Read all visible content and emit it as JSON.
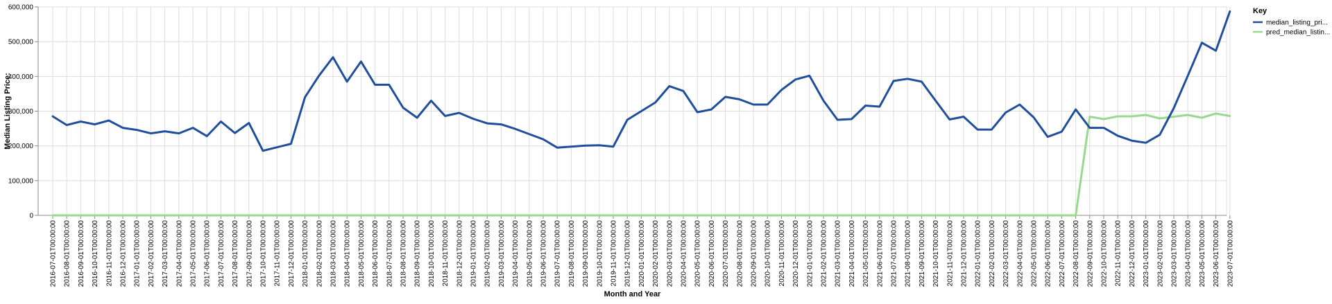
{
  "chart_data": {
    "type": "line",
    "xlabel": "Month and Year",
    "ylabel": "Median Listing Price:",
    "ylim": [
      0,
      600000
    ],
    "y_ticks": [
      "0",
      "100,000",
      "200,000",
      "300,000",
      "400,000",
      "500,000",
      "600,000"
    ],
    "grid": true,
    "legend": {
      "title": "Key",
      "placement": "top-right"
    },
    "x": [
      "2016-07-01T00:00:00",
      "2016-08-01T00:00:00",
      "2016-09-01T00:00:00",
      "2016-10-01T00:00:00",
      "2016-11-01T00:00:00",
      "2016-12-01T00:00:00",
      "2017-01-01T00:00:00",
      "2017-02-01T00:00:00",
      "2017-03-01T00:00:00",
      "2017-04-01T00:00:00",
      "2017-05-01T00:00:00",
      "2017-06-01T00:00:00",
      "2017-07-01T00:00:00",
      "2017-08-01T00:00:00",
      "2017-09-01T00:00:00",
      "2017-10-01T00:00:00",
      "2017-11-01T00:00:00",
      "2017-12-01T00:00:00",
      "2018-01-01T00:00:00",
      "2018-02-01T00:00:00",
      "2018-03-01T00:00:00",
      "2018-04-01T00:00:00",
      "2018-05-01T00:00:00",
      "2018-06-01T00:00:00",
      "2018-07-01T00:00:00",
      "2018-08-01T00:00:00",
      "2018-09-01T00:00:00",
      "2018-10-01T00:00:00",
      "2018-11-01T00:00:00",
      "2018-12-01T00:00:00",
      "2019-01-01T00:00:00",
      "2019-02-01T00:00:00",
      "2019-03-01T00:00:00",
      "2019-04-01T00:00:00",
      "2019-05-01T00:00:00",
      "2019-06-01T00:00:00",
      "2019-07-01T00:00:00",
      "2019-08-01T00:00:00",
      "2019-09-01T00:00:00",
      "2019-10-01T00:00:00",
      "2019-11-01T00:00:00",
      "2019-12-01T00:00:00",
      "2020-01-01T00:00:00",
      "2020-02-01T00:00:00",
      "2020-03-01T00:00:00",
      "2020-04-01T00:00:00",
      "2020-05-01T00:00:00",
      "2020-06-01T00:00:00",
      "2020-07-01T00:00:00",
      "2020-08-01T00:00:00",
      "2020-09-01T00:00:00",
      "2020-10-01T00:00:00",
      "2020-11-01T00:00:00",
      "2020-12-01T00:00:00",
      "2021-01-01T00:00:00",
      "2021-02-01T00:00:00",
      "2021-03-01T00:00:00",
      "2021-04-01T00:00:00",
      "2021-05-01T00:00:00",
      "2021-06-01T00:00:00",
      "2021-07-01T00:00:00",
      "2021-08-01T00:00:00",
      "2021-09-01T00:00:00",
      "2021-10-01T00:00:00",
      "2021-11-01T00:00:00",
      "2021-12-01T00:00:00",
      "2022-01-01T00:00:00",
      "2022-02-01T00:00:00",
      "2022-03-01T00:00:00",
      "2022-04-01T00:00:00",
      "2022-05-01T00:00:00",
      "2022-06-01T00:00:00",
      "2022-07-01T00:00:00",
      "2022-08-01T00:00:00",
      "2022-09-01T00:00:00",
      "2022-10-01T00:00:00",
      "2022-11-01T00:00:00",
      "2022-12-01T00:00:00",
      "2023-01-01T00:00:00",
      "2023-02-01T00:00:00",
      "2023-03-01T00:00:00",
      "2023-04-01T00:00:00",
      "2023-05-01T00:00:00",
      "2023-06-01T00:00:00",
      "2023-07-01T00:00:00"
    ],
    "series": [
      {
        "name": "median_listing_pri...",
        "color": "#1f4e9c",
        "values": [
          285000,
          260000,
          270000,
          262000,
          273000,
          252000,
          246000,
          236000,
          242000,
          236000,
          252000,
          228000,
          270000,
          237000,
          266000,
          186000,
          196000,
          206000,
          340000,
          402000,
          455000,
          385000,
          443000,
          376000,
          376000,
          310000,
          281000,
          330000,
          286000,
          295000,
          278000,
          265000,
          262000,
          249000,
          234000,
          219000,
          195000,
          198000,
          201000,
          202000,
          198000,
          275000,
          300000,
          325000,
          372000,
          358000,
          297000,
          305000,
          341000,
          334000,
          319000,
          319000,
          361000,
          391000,
          402000,
          330000,
          275000,
          277000,
          316000,
          313000,
          387000,
          393000,
          385000,
          330000,
          276000,
          284000,
          247000,
          247000,
          296000,
          319000,
          282000,
          226000,
          241000,
          305000,
          252000,
          252000,
          229000,
          215000,
          209000,
          232000,
          309000,
          402000,
          497000,
          474000,
          587000
        ]
      },
      {
        "name": "pred_median_listin...",
        "color": "#98d98e",
        "values": [
          0,
          0,
          0,
          0,
          0,
          0,
          0,
          0,
          0,
          0,
          0,
          0,
          0,
          0,
          0,
          0,
          0,
          0,
          0,
          0,
          0,
          0,
          0,
          0,
          0,
          0,
          0,
          0,
          0,
          0,
          0,
          0,
          0,
          0,
          0,
          0,
          0,
          0,
          0,
          0,
          0,
          0,
          0,
          0,
          0,
          0,
          0,
          0,
          0,
          0,
          0,
          0,
          0,
          0,
          0,
          0,
          0,
          0,
          0,
          0,
          0,
          0,
          0,
          0,
          0,
          0,
          0,
          0,
          0,
          0,
          0,
          0,
          0,
          0,
          284000,
          277000,
          285000,
          285000,
          289000,
          279000,
          284000,
          289000,
          281000,
          293000,
          286000
        ]
      }
    ]
  }
}
